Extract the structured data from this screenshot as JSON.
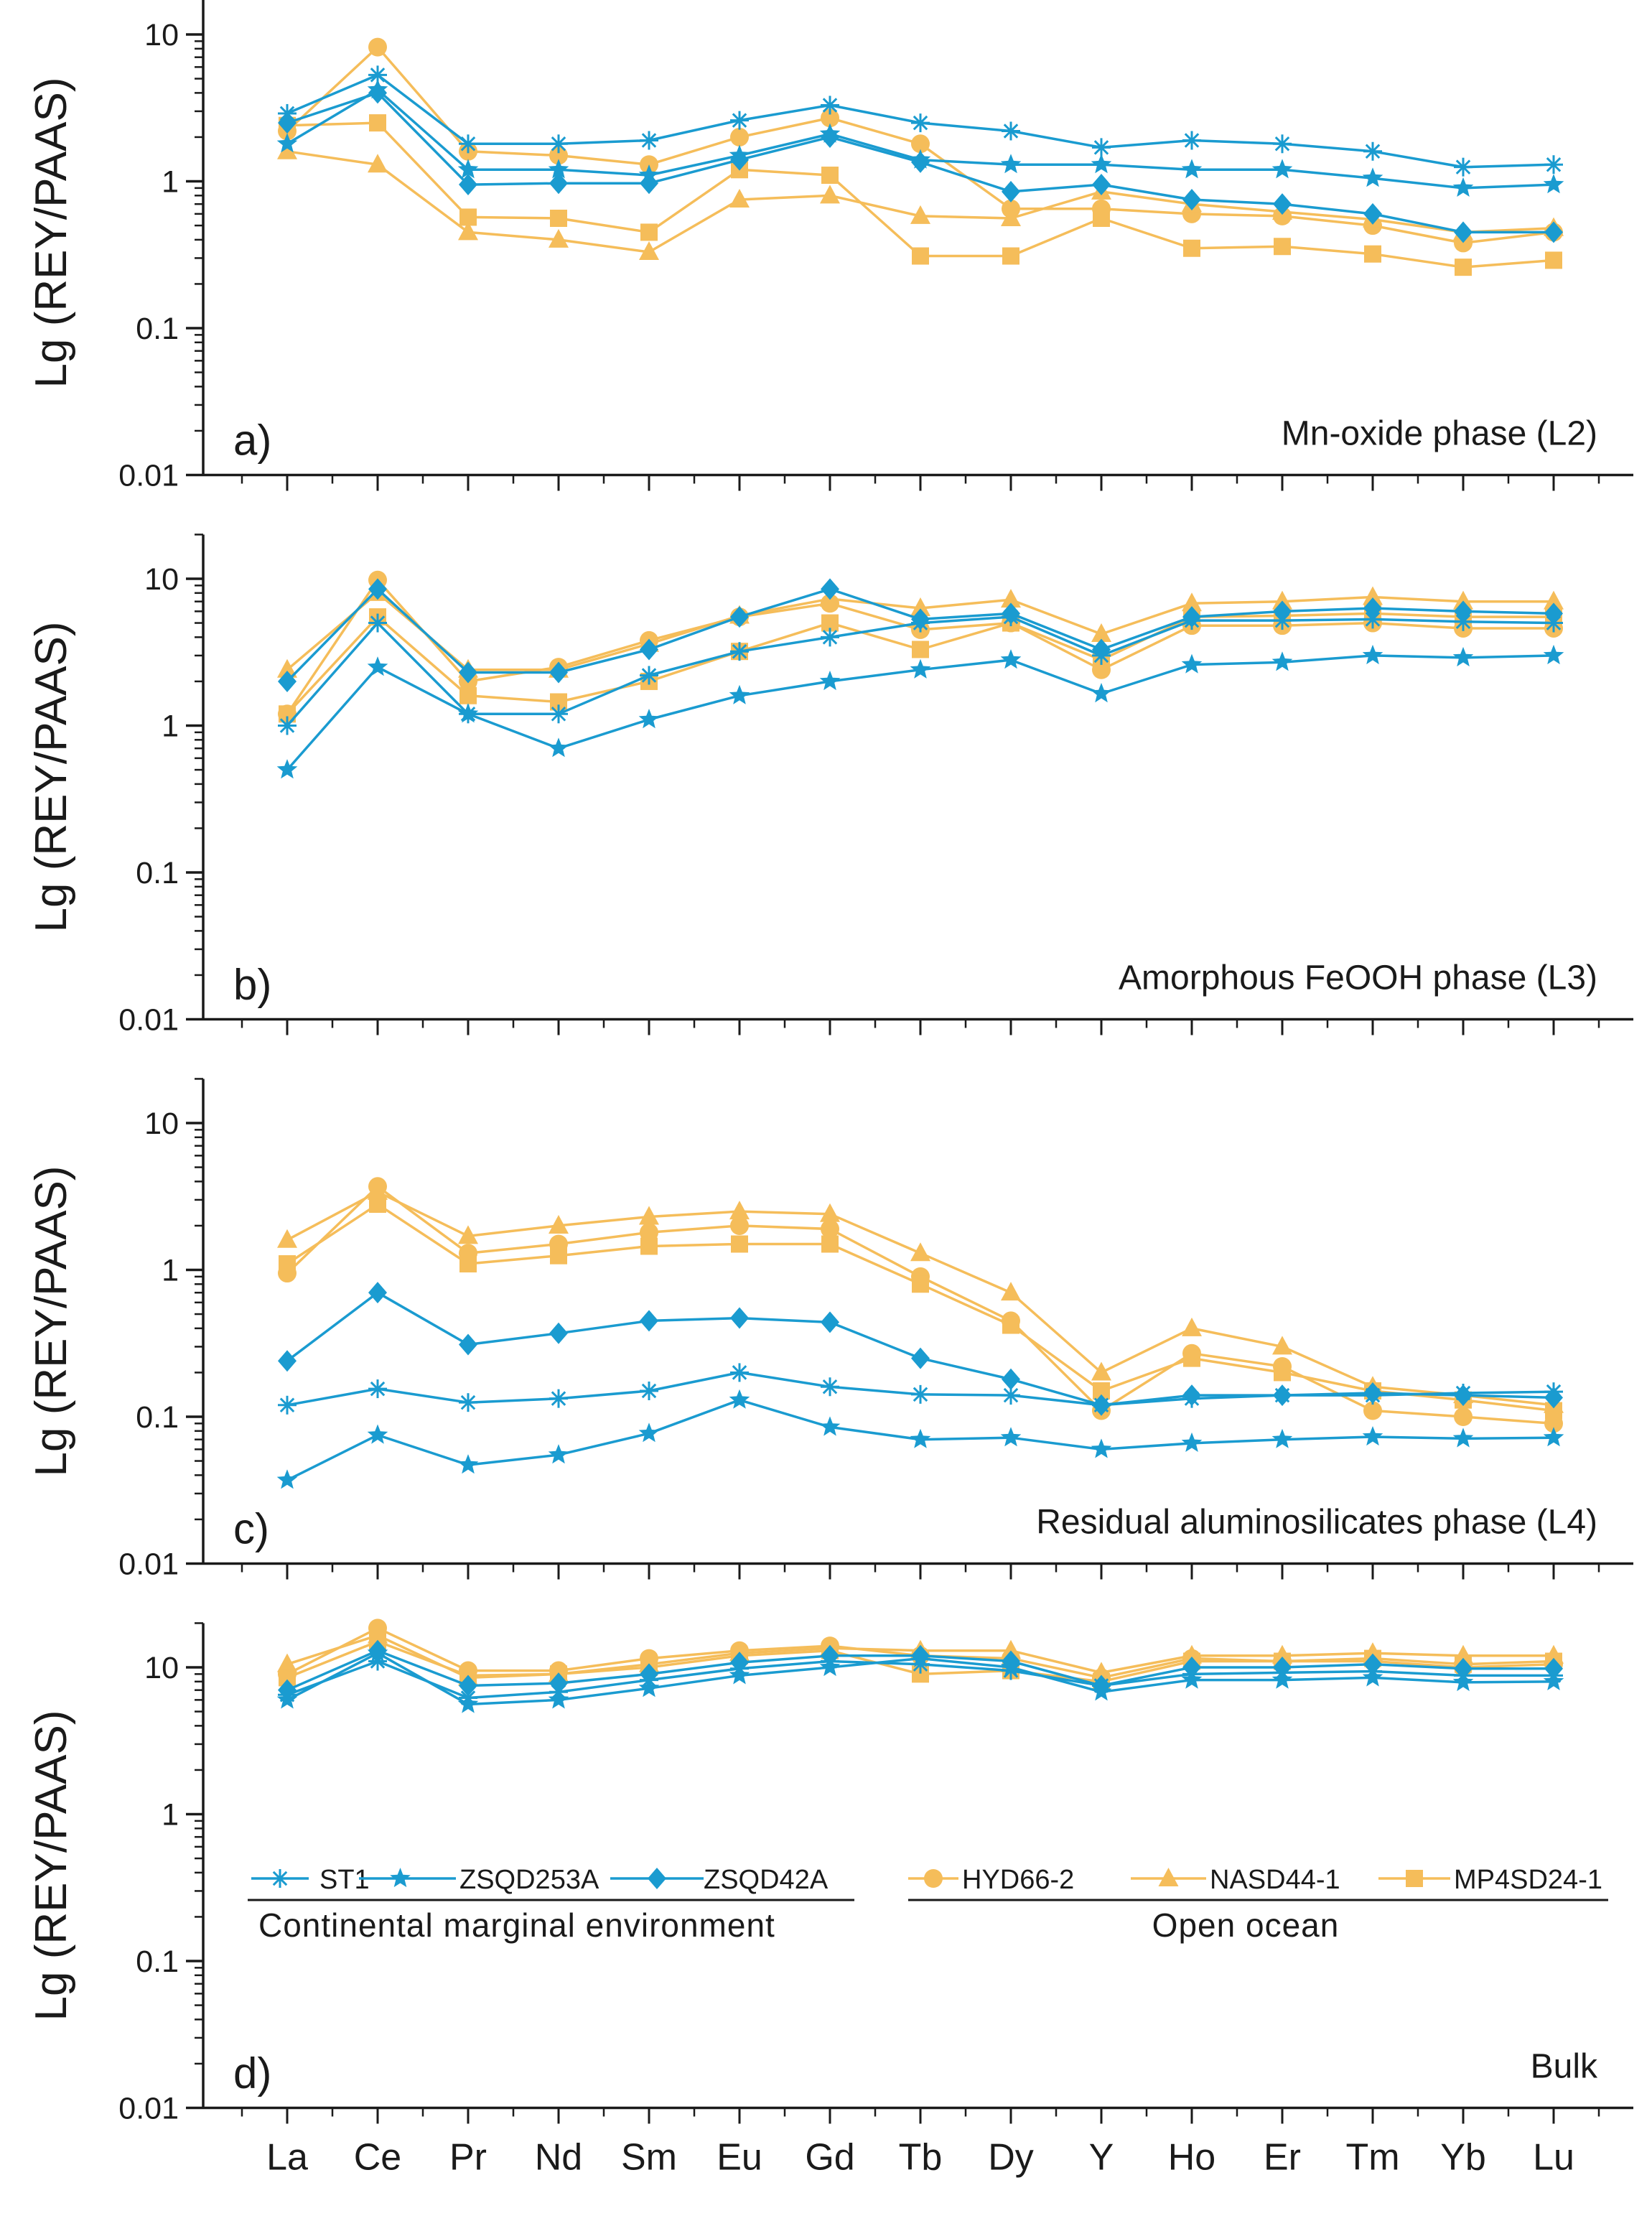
{
  "figure": {
    "element_labels": [
      "La",
      "Ce",
      "Pr",
      "Nd",
      "Sm",
      "Eu",
      "Gd",
      "Tb",
      "Dy",
      "Y",
      "Ho",
      "Er",
      "Tm",
      "Yb",
      "Lu"
    ],
    "y_axis_label": "Lg (REY/PAAS)",
    "y_ticks": [
      "10",
      "1",
      "0.1",
      "0.01"
    ],
    "colors": {
      "continental": "#1a9bd0",
      "ocean": "#f5bd5a",
      "axis": "#1a1a1a"
    },
    "legend": {
      "group_continental": "Continental marginal environment",
      "group_ocean": "Open ocean",
      "entries": [
        {
          "name": "ST1",
          "marker": "asterisk",
          "group": "continental"
        },
        {
          "name": "ZSQD253A",
          "marker": "star",
          "group": "continental"
        },
        {
          "name": "ZSQD42A",
          "marker": "diamond",
          "group": "continental"
        },
        {
          "name": "HYD66-2",
          "marker": "circle",
          "group": "ocean"
        },
        {
          "name": "NASD44-1",
          "marker": "triangle",
          "group": "ocean"
        },
        {
          "name": "MP4SD24-1",
          "marker": "square",
          "group": "ocean"
        }
      ]
    }
  },
  "chart_data": [
    {
      "type": "line",
      "panel_label": "a)",
      "title": "Mn-oxide phase (L2)",
      "ylabel": "Lg (REY/PAAS)",
      "yscale": "log",
      "ylim": [
        0.01,
        20
      ],
      "categories": [
        "La",
        "Ce",
        "Pr",
        "Nd",
        "Sm",
        "Eu",
        "Gd",
        "Tb",
        "Dy",
        "Y",
        "Ho",
        "Er",
        "Tm",
        "Yb",
        "Lu"
      ],
      "series": [
        {
          "name": "ST1",
          "values": [
            2.9,
            5.3,
            1.8,
            1.8,
            1.9,
            2.6,
            3.3,
            2.5,
            2.2,
            1.7,
            1.9,
            1.8,
            1.6,
            1.25,
            1.3
          ]
        },
        {
          "name": "ZSQD253A",
          "values": [
            1.8,
            4.2,
            1.2,
            1.2,
            1.1,
            1.5,
            2.1,
            1.4,
            1.3,
            1.3,
            1.2,
            1.2,
            1.05,
            0.9,
            0.95
          ]
        },
        {
          "name": "ZSQD42A",
          "values": [
            2.5,
            4.0,
            0.95,
            0.97,
            0.97,
            1.4,
            2.0,
            1.35,
            0.85,
            0.95,
            0.75,
            0.7,
            0.6,
            0.45,
            0.45
          ]
        },
        {
          "name": "HYD66-2",
          "values": [
            2.2,
            8.2,
            1.6,
            1.5,
            1.3,
            2.0,
            2.7,
            1.8,
            0.65,
            0.65,
            0.6,
            0.58,
            0.5,
            0.38,
            0.45
          ]
        },
        {
          "name": "NASD44-1",
          "values": [
            1.6,
            1.3,
            0.45,
            0.4,
            0.33,
            0.75,
            0.8,
            0.58,
            0.56,
            0.85,
            0.7,
            0.62,
            0.55,
            0.45,
            0.48
          ]
        },
        {
          "name": "MP4SD24-1",
          "values": [
            2.4,
            2.5,
            0.57,
            0.56,
            0.45,
            1.2,
            1.1,
            0.31,
            0.31,
            0.56,
            0.35,
            0.36,
            0.32,
            0.26,
            0.29
          ]
        }
      ]
    },
    {
      "type": "line",
      "panel_label": "b)",
      "title": "Amorphous FeOOH phase (L3)",
      "ylabel": "Lg (REY/PAAS)",
      "yscale": "log",
      "ylim": [
        0.01,
        20
      ],
      "categories": [
        "La",
        "Ce",
        "Pr",
        "Nd",
        "Sm",
        "Eu",
        "Gd",
        "Tb",
        "Dy",
        "Y",
        "Ho",
        "Er",
        "Tm",
        "Yb",
        "Lu"
      ],
      "series": [
        {
          "name": "ST1",
          "values": [
            1.0,
            5.0,
            1.2,
            1.2,
            2.2,
            3.2,
            4.0,
            5.0,
            5.5,
            3.0,
            5.2,
            5.2,
            5.3,
            5.1,
            5.0
          ]
        },
        {
          "name": "ZSQD253A",
          "values": [
            0.5,
            2.5,
            1.2,
            0.7,
            1.1,
            1.6,
            2.0,
            2.4,
            2.8,
            1.65,
            2.6,
            2.7,
            3.0,
            2.9,
            3.0
          ]
        },
        {
          "name": "ZSQD42A",
          "values": [
            2.0,
            8.5,
            2.3,
            2.3,
            3.3,
            5.5,
            8.5,
            5.3,
            5.8,
            3.3,
            5.5,
            6.0,
            6.3,
            6.0,
            5.8
          ]
        },
        {
          "name": "HYD66-2",
          "values": [
            1.2,
            9.8,
            2.0,
            2.5,
            3.8,
            5.5,
            6.8,
            4.5,
            5.0,
            2.4,
            4.8,
            4.8,
            5.0,
            4.6,
            4.6
          ]
        },
        {
          "name": "NASD44-1",
          "values": [
            2.4,
            8.0,
            2.4,
            2.4,
            3.6,
            5.6,
            7.3,
            6.3,
            7.2,
            4.2,
            6.8,
            7.0,
            7.5,
            7.0,
            7.0
          ]
        },
        {
          "name": "MP4SD24-1",
          "values": [
            1.2,
            5.5,
            1.6,
            1.45,
            2.0,
            3.2,
            5.0,
            3.3,
            5.0,
            2.8,
            5.5,
            5.6,
            5.8,
            5.5,
            5.5
          ]
        }
      ]
    },
    {
      "type": "line",
      "panel_label": "c)",
      "title": "Residual aluminosilicates phase (L4)",
      "ylabel": "Lg (REY/PAAS)",
      "yscale": "log",
      "ylim": [
        0.01,
        20
      ],
      "categories": [
        "La",
        "Ce",
        "Pr",
        "Nd",
        "Sm",
        "Eu",
        "Gd",
        "Tb",
        "Dy",
        "Y",
        "Ho",
        "Er",
        "Tm",
        "Yb",
        "Lu"
      ],
      "series": [
        {
          "name": "ST1",
          "values": [
            0.12,
            0.155,
            0.125,
            0.133,
            0.15,
            0.2,
            0.16,
            0.142,
            0.14,
            0.12,
            0.133,
            0.14,
            0.14,
            0.145,
            0.148
          ]
        },
        {
          "name": "ZSQD253A",
          "values": [
            0.037,
            0.075,
            0.047,
            0.055,
            0.077,
            0.13,
            0.085,
            0.07,
            0.072,
            0.06,
            0.066,
            0.07,
            0.073,
            0.071,
            0.072
          ]
        },
        {
          "name": "ZSQD42A",
          "values": [
            0.24,
            0.7,
            0.31,
            0.37,
            0.45,
            0.47,
            0.44,
            0.25,
            0.18,
            0.12,
            0.14,
            0.14,
            0.145,
            0.14,
            0.135
          ]
        },
        {
          "name": "HYD66-2",
          "values": [
            0.95,
            3.7,
            1.3,
            1.5,
            1.8,
            2.0,
            1.9,
            0.9,
            0.45,
            0.11,
            0.27,
            0.22,
            0.11,
            0.1,
            0.09
          ]
        },
        {
          "name": "NASD44-1",
          "values": [
            1.6,
            3.4,
            1.7,
            2.0,
            2.3,
            2.5,
            2.4,
            1.3,
            0.7,
            0.2,
            0.4,
            0.3,
            0.16,
            0.14,
            0.12
          ]
        },
        {
          "name": "MP4SD24-1",
          "values": [
            1.1,
            2.8,
            1.1,
            1.25,
            1.45,
            1.5,
            1.5,
            0.8,
            0.42,
            0.15,
            0.25,
            0.2,
            0.15,
            0.13,
            0.11
          ]
        }
      ]
    },
    {
      "type": "line",
      "panel_label": "d)",
      "title": "Bulk",
      "ylabel": "Lg (REY/PAAS)",
      "yscale": "log",
      "ylim": [
        0.01,
        20
      ],
      "categories": [
        "La",
        "Ce",
        "Pr",
        "Nd",
        "Sm",
        "Eu",
        "Gd",
        "Tb",
        "Dy",
        "Y",
        "Ho",
        "Er",
        "Tm",
        "Yb",
        "Lu"
      ],
      "series": [
        {
          "name": "ST1",
          "values": [
            6.5,
            11.0,
            6.2,
            6.8,
            8.2,
            9.8,
            11.0,
            10.5,
            9.5,
            7.5,
            9.0,
            9.2,
            9.4,
            8.8,
            8.8
          ]
        },
        {
          "name": "ZSQD253A",
          "values": [
            6.0,
            12.5,
            5.6,
            6.0,
            7.2,
            8.8,
            10.0,
            11.5,
            10.0,
            6.8,
            8.2,
            8.2,
            8.5,
            7.9,
            8.0
          ]
        },
        {
          "name": "ZSQD42A",
          "values": [
            7.0,
            13.0,
            7.5,
            7.8,
            9.0,
            10.8,
            12.0,
            12.0,
            11.0,
            7.5,
            10.0,
            10.0,
            10.5,
            9.8,
            9.8
          ]
        },
        {
          "name": "HYD66-2",
          "values": [
            9.0,
            18.5,
            9.5,
            9.5,
            11.5,
            13.0,
            14.0,
            12.0,
            11.5,
            8.5,
            11.5,
            11.0,
            11.0,
            10.0,
            10.5
          ]
        },
        {
          "name": "NASD44-1",
          "values": [
            10.5,
            16.5,
            8.5,
            9.0,
            10.5,
            12.5,
            13.5,
            13.0,
            13.0,
            9.2,
            12.0,
            12.0,
            12.5,
            12.0,
            12.0
          ]
        },
        {
          "name": "MP4SD24-1",
          "values": [
            8.5,
            15.0,
            8.8,
            9.0,
            10.0,
            12.0,
            13.0,
            9.0,
            9.5,
            8.0,
            11.0,
            11.0,
            11.5,
            10.5,
            11.0
          ]
        }
      ]
    }
  ]
}
